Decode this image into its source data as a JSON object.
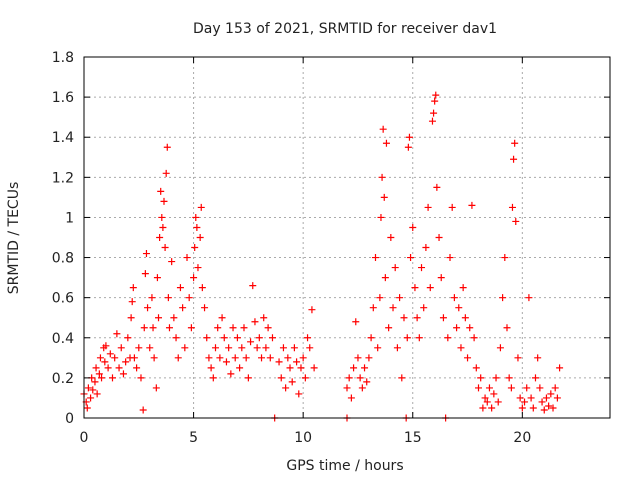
{
  "chart_data": {
    "type": "scatter",
    "title": "Day 153 of 2021, SRMTID for receiver dav1",
    "xlabel": "GPS time / hours",
    "ylabel": "SRMTID / TECUs",
    "xlim": [
      0,
      24
    ],
    "ylim": [
      0,
      1.8
    ],
    "xticks": [
      0,
      5,
      10,
      15,
      20
    ],
    "yticks": [
      0,
      0.2,
      0.4,
      0.6,
      0.8,
      1,
      1.2,
      1.4,
      1.6,
      1.8
    ],
    "xtick_labels": [
      "0",
      "5",
      "10",
      "15",
      "20"
    ],
    "ytick_labels": [
      "0",
      "0.2",
      "0.4",
      "0.6",
      "0.8",
      "1",
      "1.2",
      "1.4",
      "1.6",
      "1.8"
    ],
    "grid": true,
    "marker": "+",
    "color": "#ff0000",
    "series": [
      {
        "name": "SRMTID",
        "points": [
          [
            0.0,
            0.12
          ],
          [
            0.1,
            0.08
          ],
          [
            0.15,
            0.05
          ],
          [
            0.2,
            0.15
          ],
          [
            0.3,
            0.1
          ],
          [
            0.35,
            0.2
          ],
          [
            0.4,
            0.14
          ],
          [
            0.5,
            0.18
          ],
          [
            0.55,
            0.25
          ],
          [
            0.6,
            0.12
          ],
          [
            0.7,
            0.22
          ],
          [
            0.75,
            0.3
          ],
          [
            0.8,
            0.2
          ],
          [
            0.9,
            0.35
          ],
          [
            0.95,
            0.28
          ],
          [
            1.0,
            0.36
          ],
          [
            1.1,
            0.25
          ],
          [
            1.2,
            0.32
          ],
          [
            1.3,
            0.2
          ],
          [
            1.4,
            0.3
          ],
          [
            1.5,
            0.42
          ],
          [
            1.6,
            0.25
          ],
          [
            1.7,
            0.35
          ],
          [
            1.8,
            0.22
          ],
          [
            1.9,
            0.28
          ],
          [
            2.0,
            0.4
          ],
          [
            2.1,
            0.3
          ],
          [
            2.15,
            0.5
          ],
          [
            2.2,
            0.58
          ],
          [
            2.25,
            0.65
          ],
          [
            2.3,
            0.3
          ],
          [
            2.4,
            0.25
          ],
          [
            2.5,
            0.35
          ],
          [
            2.6,
            0.2
          ],
          [
            2.7,
            0.04
          ],
          [
            2.75,
            0.45
          ],
          [
            2.8,
            0.72
          ],
          [
            2.85,
            0.82
          ],
          [
            2.9,
            0.55
          ],
          [
            3.0,
            0.35
          ],
          [
            3.1,
            0.6
          ],
          [
            3.15,
            0.45
          ],
          [
            3.2,
            0.3
          ],
          [
            3.3,
            0.15
          ],
          [
            3.35,
            0.7
          ],
          [
            3.4,
            0.5
          ],
          [
            3.45,
            0.9
          ],
          [
            3.5,
            1.13
          ],
          [
            3.55,
            1.0
          ],
          [
            3.6,
            0.95
          ],
          [
            3.65,
            1.08
          ],
          [
            3.7,
            0.85
          ],
          [
            3.75,
            1.22
          ],
          [
            3.8,
            1.35
          ],
          [
            3.85,
            0.6
          ],
          [
            3.9,
            0.45
          ],
          [
            4.0,
            0.78
          ],
          [
            4.1,
            0.5
          ],
          [
            4.2,
            0.4
          ],
          [
            4.3,
            0.3
          ],
          [
            4.4,
            0.65
          ],
          [
            4.5,
            0.55
          ],
          [
            4.6,
            0.35
          ],
          [
            4.7,
            0.8
          ],
          [
            4.8,
            0.6
          ],
          [
            4.9,
            0.45
          ],
          [
            5.0,
            0.7
          ],
          [
            5.05,
            0.85
          ],
          [
            5.1,
            1.0
          ],
          [
            5.15,
            0.95
          ],
          [
            5.2,
            0.75
          ],
          [
            5.3,
            0.9
          ],
          [
            5.35,
            1.05
          ],
          [
            5.4,
            0.65
          ],
          [
            5.5,
            0.55
          ],
          [
            5.6,
            0.4
          ],
          [
            5.7,
            0.3
          ],
          [
            5.8,
            0.25
          ],
          [
            5.9,
            0.2
          ],
          [
            6.0,
            0.35
          ],
          [
            6.1,
            0.45
          ],
          [
            6.2,
            0.3
          ],
          [
            6.3,
            0.5
          ],
          [
            6.4,
            0.4
          ],
          [
            6.5,
            0.28
          ],
          [
            6.6,
            0.35
          ],
          [
            6.7,
            0.22
          ],
          [
            6.8,
            0.45
          ],
          [
            6.9,
            0.3
          ],
          [
            7.0,
            0.4
          ],
          [
            7.1,
            0.25
          ],
          [
            7.2,
            0.35
          ],
          [
            7.3,
            0.45
          ],
          [
            7.4,
            0.3
          ],
          [
            7.5,
            0.2
          ],
          [
            7.6,
            0.38
          ],
          [
            7.7,
            0.66
          ],
          [
            7.8,
            0.48
          ],
          [
            7.9,
            0.35
          ],
          [
            8.0,
            0.4
          ],
          [
            8.1,
            0.3
          ],
          [
            8.2,
            0.5
          ],
          [
            8.3,
            0.35
          ],
          [
            8.4,
            0.45
          ],
          [
            8.5,
            0.3
          ],
          [
            8.6,
            0.4
          ],
          [
            8.7,
            0.0
          ],
          [
            8.9,
            0.28
          ],
          [
            9.0,
            0.2
          ],
          [
            9.1,
            0.35
          ],
          [
            9.2,
            0.15
          ],
          [
            9.3,
            0.3
          ],
          [
            9.4,
            0.25
          ],
          [
            9.5,
            0.18
          ],
          [
            9.6,
            0.35
          ],
          [
            9.7,
            0.28
          ],
          [
            9.8,
            0.12
          ],
          [
            9.9,
            0.25
          ],
          [
            10.0,
            0.3
          ],
          [
            10.1,
            0.2
          ],
          [
            10.2,
            0.4
          ],
          [
            10.3,
            0.35
          ],
          [
            10.4,
            0.54
          ],
          [
            10.5,
            0.25
          ],
          [
            12.0,
            0.0
          ],
          [
            12.0,
            0.15
          ],
          [
            12.1,
            0.2
          ],
          [
            12.2,
            0.1
          ],
          [
            12.3,
            0.25
          ],
          [
            12.4,
            0.48
          ],
          [
            12.5,
            0.3
          ],
          [
            12.6,
            0.2
          ],
          [
            12.7,
            0.15
          ],
          [
            12.8,
            0.25
          ],
          [
            12.9,
            0.18
          ],
          [
            13.0,
            0.3
          ],
          [
            13.1,
            0.4
          ],
          [
            13.2,
            0.55
          ],
          [
            13.3,
            0.8
          ],
          [
            13.4,
            0.35
          ],
          [
            13.5,
            0.6
          ],
          [
            13.55,
            1.0
          ],
          [
            13.6,
            1.2
          ],
          [
            13.65,
            1.44
          ],
          [
            13.7,
            1.1
          ],
          [
            13.75,
            0.7
          ],
          [
            13.8,
            1.37
          ],
          [
            13.9,
            0.45
          ],
          [
            14.0,
            0.9
          ],
          [
            14.1,
            0.55
          ],
          [
            14.2,
            0.75
          ],
          [
            14.3,
            0.35
          ],
          [
            14.4,
            0.6
          ],
          [
            14.5,
            0.2
          ],
          [
            14.6,
            0.5
          ],
          [
            14.7,
            0.0
          ],
          [
            14.75,
            0.4
          ],
          [
            14.8,
            1.35
          ],
          [
            14.85,
            1.4
          ],
          [
            14.9,
            0.8
          ],
          [
            15.0,
            0.95
          ],
          [
            15.1,
            0.65
          ],
          [
            15.2,
            0.5
          ],
          [
            15.3,
            0.4
          ],
          [
            15.4,
            0.75
          ],
          [
            15.5,
            0.55
          ],
          [
            15.6,
            0.85
          ],
          [
            15.7,
            1.05
          ],
          [
            15.8,
            0.65
          ],
          [
            15.9,
            1.48
          ],
          [
            15.95,
            1.52
          ],
          [
            16.0,
            1.58
          ],
          [
            16.05,
            1.61
          ],
          [
            16.1,
            1.15
          ],
          [
            16.2,
            0.9
          ],
          [
            16.3,
            0.7
          ],
          [
            16.4,
            0.5
          ],
          [
            16.5,
            0.0
          ],
          [
            16.6,
            0.4
          ],
          [
            16.7,
            0.8
          ],
          [
            16.8,
            1.05
          ],
          [
            16.9,
            0.6
          ],
          [
            17.0,
            0.45
          ],
          [
            17.1,
            0.55
          ],
          [
            17.2,
            0.35
          ],
          [
            17.3,
            0.65
          ],
          [
            17.4,
            0.5
          ],
          [
            17.5,
            0.3
          ],
          [
            17.6,
            0.45
          ],
          [
            17.7,
            1.06
          ],
          [
            17.8,
            0.4
          ],
          [
            17.9,
            0.25
          ],
          [
            18.0,
            0.15
          ],
          [
            18.1,
            0.2
          ],
          [
            18.2,
            0.05
          ],
          [
            18.3,
            0.1
          ],
          [
            18.4,
            0.08
          ],
          [
            18.5,
            0.15
          ],
          [
            18.6,
            0.05
          ],
          [
            18.7,
            0.12
          ],
          [
            18.8,
            0.2
          ],
          [
            18.9,
            0.08
          ],
          [
            19.0,
            0.35
          ],
          [
            19.1,
            0.6
          ],
          [
            19.2,
            0.8
          ],
          [
            19.3,
            0.45
          ],
          [
            19.4,
            0.2
          ],
          [
            19.5,
            0.15
          ],
          [
            19.55,
            1.05
          ],
          [
            19.6,
            1.29
          ],
          [
            19.65,
            1.37
          ],
          [
            19.7,
            0.98
          ],
          [
            19.8,
            0.3
          ],
          [
            19.9,
            0.1
          ],
          [
            20.0,
            0.05
          ],
          [
            20.1,
            0.08
          ],
          [
            20.2,
            0.15
          ],
          [
            20.3,
            0.6
          ],
          [
            20.4,
            0.1
          ],
          [
            20.5,
            0.05
          ],
          [
            20.6,
            0.2
          ],
          [
            20.7,
            0.3
          ],
          [
            20.8,
            0.15
          ],
          [
            20.9,
            0.08
          ],
          [
            21.0,
            0.04
          ],
          [
            21.1,
            0.1
          ],
          [
            21.2,
            0.06
          ],
          [
            21.3,
            0.12
          ],
          [
            21.4,
            0.05
          ],
          [
            21.5,
            0.15
          ],
          [
            21.6,
            0.1
          ],
          [
            21.7,
            0.25
          ]
        ]
      }
    ]
  }
}
